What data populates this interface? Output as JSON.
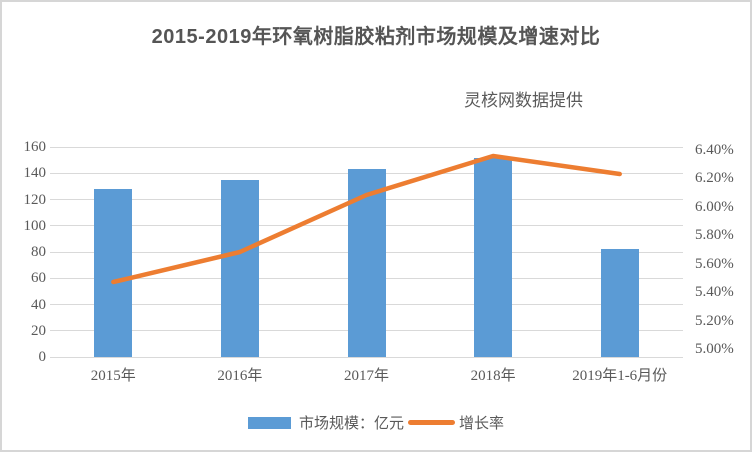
{
  "title": "2015-2019年环氧树脂胶粘剂市场规模及增速对比",
  "subtitle": "灵核网数据提供",
  "colors": {
    "bar": "#5b9bd5",
    "line": "#ed7d31",
    "gridline": "#d9d9d9",
    "axis_text": "#595959",
    "title_text": "#555555"
  },
  "chart_data": {
    "type": "bar",
    "subtype": "combo-bar-line-dual-axis",
    "title": "2015-2019年环氧树脂胶粘剂市场规模及增速对比",
    "source_note": "灵核网数据提供",
    "categories": [
      "2015年",
      "2016年",
      "2017年",
      "2018年",
      "2019年1-6月份"
    ],
    "series": [
      {
        "name": "市场规模：亿元",
        "type": "bar",
        "axis": "left",
        "color": "#5b9bd5",
        "values": [
          128,
          135,
          143,
          152,
          82
        ]
      },
      {
        "name": "增长率",
        "type": "line",
        "axis": "right",
        "color": "#ed7d31",
        "unit": "%",
        "values": [
          5.5,
          5.7,
          6.08,
          6.34,
          6.22
        ]
      }
    ],
    "left_axis": {
      "min": 0,
      "max": 160,
      "step": 20,
      "ticks": [
        "0",
        "20",
        "40",
        "60",
        "80",
        "100",
        "120",
        "140",
        "160"
      ]
    },
    "right_axis": {
      "min": 5.0,
      "max": 6.4,
      "step": 0.2,
      "ticks": [
        "5.00%",
        "5.20%",
        "5.40%",
        "5.60%",
        "5.80%",
        "6.00%",
        "6.20%",
        "6.40%"
      ]
    },
    "grid": true,
    "legend_position": "bottom",
    "legend": [
      "市场规模：亿元",
      "增长率"
    ]
  }
}
